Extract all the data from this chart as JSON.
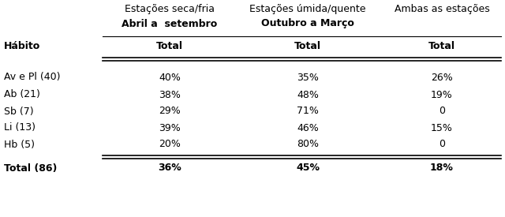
{
  "col_headers_line1": [
    "Estações seca/fria",
    "Estações úmida/quente",
    "Ambas as estações"
  ],
  "col_headers_line2": [
    "Abril a  setembro",
    "Outubro a Março",
    ""
  ],
  "col_headers_line3": [
    "Total",
    "Total",
    "Total"
  ],
  "row_header": "Hábito",
  "rows": [
    [
      "Av e Pl (40)",
      "40%",
      "35%",
      "26%"
    ],
    [
      "Ab (21)",
      "38%",
      "48%",
      "19%"
    ],
    [
      "Sb (7)",
      "29%",
      "71%",
      "0"
    ],
    [
      "Li (13)",
      "39%",
      "46%",
      "15%"
    ],
    [
      "Hb (5)",
      "20%",
      "80%",
      "0"
    ]
  ],
  "total_row": [
    "Total (86)",
    "36%",
    "45%",
    "18%"
  ],
  "background": "#ffffff",
  "text_color": "#000000",
  "font_size": 9.0
}
